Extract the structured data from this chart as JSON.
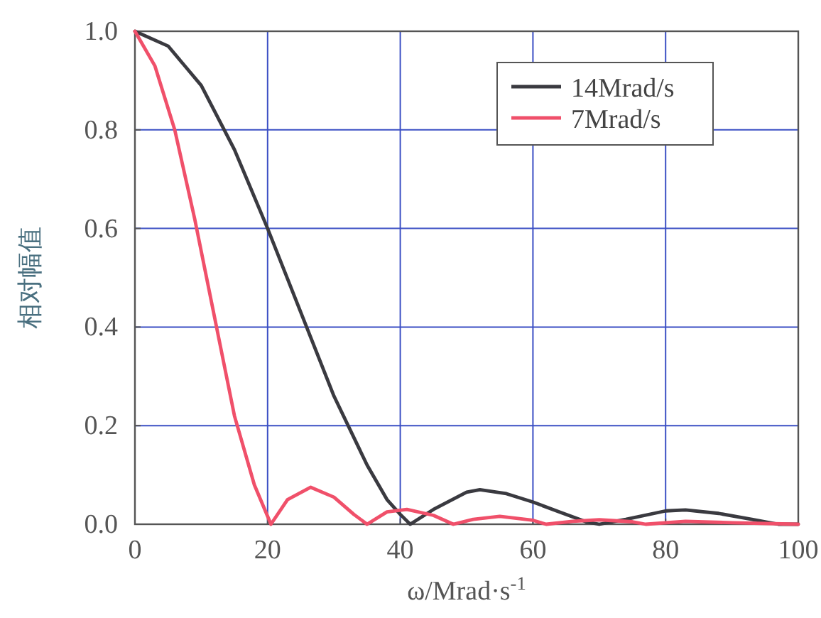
{
  "chart_data": {
    "type": "line",
    "xlabel": "ω/Mrad·s$^{-1}$",
    "ylabel": "相对幅值",
    "xlim": [
      0,
      100
    ],
    "xticks": [
      0,
      20,
      40,
      60,
      80,
      100
    ],
    "ylim": [
      0,
      1
    ],
    "yticks": [
      {
        "value": 0,
        "label": "0.0"
      },
      {
        "value": 0.2,
        "label": "0.2"
      },
      {
        "value": 0.4,
        "label": "0.4"
      },
      {
        "value": 0.6,
        "label": "0.6"
      },
      {
        "value": 0.8,
        "label": "0.8"
      },
      {
        "value": 1,
        "label": "1.0"
      }
    ],
    "grid": true,
    "legend": "top right",
    "marker": "none",
    "line_style": "solid",
    "series": [
      {
        "name": "14Mrad/s",
        "color": "#3a3a40",
        "x": [
          0,
          5,
          10,
          15,
          20,
          25,
          30,
          35,
          38,
          40,
          41.5,
          45,
          50,
          52,
          56,
          60,
          64,
          68,
          70,
          74,
          80,
          83,
          88,
          93,
          97,
          100
        ],
        "values": [
          1.0,
          0.97,
          0.89,
          0.76,
          0.6,
          0.43,
          0.26,
          0.12,
          0.05,
          0.02,
          0.0,
          0.03,
          0.065,
          0.07,
          0.062,
          0.045,
          0.025,
          0.005,
          0.0,
          0.01,
          0.027,
          0.029,
          0.022,
          0.01,
          0.0,
          0.0
        ]
      },
      {
        "name": "7Mrad/s",
        "color": "#f0506a",
        "x": [
          0,
          3,
          6,
          9,
          12,
          15,
          18,
          20.5,
          23,
          26.5,
          30,
          33,
          35,
          38,
          41,
          45,
          48,
          51,
          55,
          60,
          62,
          66,
          70,
          75,
          77,
          83,
          90,
          100
        ],
        "values": [
          1.0,
          0.93,
          0.8,
          0.62,
          0.42,
          0.22,
          0.08,
          0.0,
          0.05,
          0.075,
          0.055,
          0.02,
          0.0,
          0.025,
          0.03,
          0.018,
          0.0,
          0.01,
          0.016,
          0.008,
          0.0,
          0.006,
          0.009,
          0.005,
          0.0,
          0.006,
          0.003,
          0.0
        ]
      }
    ]
  }
}
